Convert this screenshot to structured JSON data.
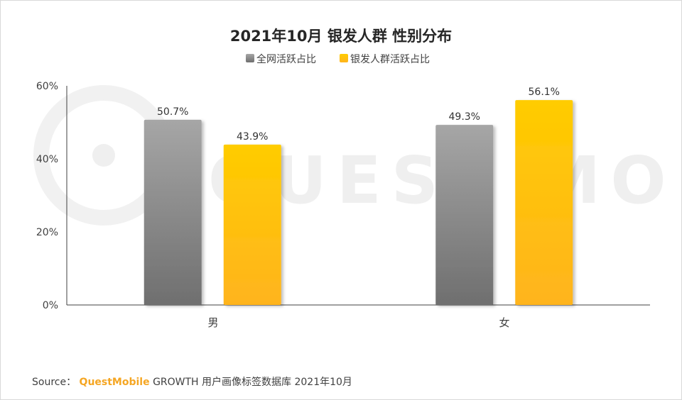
{
  "chart_data": {
    "type": "bar",
    "title": "2021年10月 银发人群 性别分布",
    "categories": [
      "男",
      "女"
    ],
    "series": [
      {
        "name": "全网活跃占比",
        "values": [
          50.7,
          49.3
        ],
        "labels": [
          "50.7%",
          "49.3%"
        ],
        "color": "#8c8c8c"
      },
      {
        "name": "银发人群活跃占比",
        "values": [
          43.9,
          56.1
        ],
        "labels": [
          "43.9%",
          "56.1%"
        ],
        "color": "#ffc000"
      }
    ],
    "yticks": [
      "0%",
      "20%",
      "40%",
      "60%"
    ],
    "ylim": [
      0,
      60
    ],
    "grid": false,
    "legend_position": "top-center",
    "xlabel": "",
    "ylabel": ""
  },
  "watermark": "QUEST MOBILE",
  "source": {
    "prefix": "Source：",
    "brand": "QuestMobile",
    "text": "GROWTH 用户画像标签数据库 2021年10月"
  }
}
